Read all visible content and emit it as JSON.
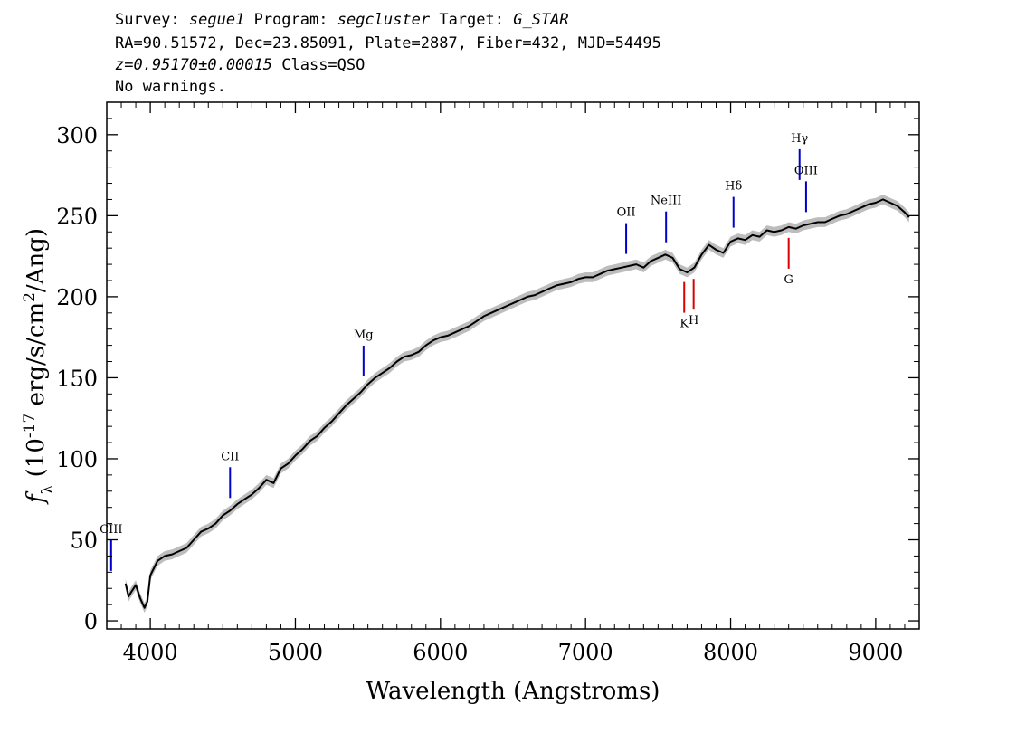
{
  "header": {
    "survey_label": "Survey:",
    "survey_value": "segue1",
    "program_label": "Program:",
    "program_value": "segcluster",
    "target_label": "Target:",
    "target_value": "G_STAR",
    "line2": "RA=90.51572, Dec=23.85091, Plate=2887, Fiber=432, MJD=54495",
    "redshift": "z=0.95170±0.00015",
    "class_text": "Class=QSO",
    "line4": "No warnings."
  },
  "chart_data": {
    "type": "line",
    "xlabel": "Wavelength (Angstroms)",
    "ylabel": "f_λ (10^-17 erg/s/cm^2/Ang)",
    "xlim": [
      3700,
      9300
    ],
    "ylim": [
      -5,
      320
    ],
    "xticks": [
      "4000",
      "5000",
      "6000",
      "7000",
      "8000",
      "9000"
    ],
    "yticks": [
      "0",
      "50",
      "100",
      "150",
      "200",
      "250",
      "300"
    ],
    "colors": {
      "spectrum": "#000000",
      "error_band": "#bdbdbd",
      "emission_lines": "#0000cc",
      "absorption_lines": "#dd0000"
    },
    "series": [
      {
        "x": [
          3830,
          3850,
          3870,
          3900,
          3930,
          3960,
          3980,
          4000,
          4050,
          4100,
          4150,
          4200,
          4250,
          4300,
          4350,
          4400,
          4450,
          4500,
          4550,
          4600,
          4650,
          4700,
          4750,
          4800,
          4850,
          4900,
          4950,
          5000,
          5050,
          5100,
          5150,
          5200,
          5250,
          5300,
          5350,
          5400,
          5450,
          5500,
          5550,
          5600,
          5650,
          5700,
          5750,
          5800,
          5850,
          5900,
          5950,
          6000,
          6050,
          6100,
          6150,
          6200,
          6250,
          6300,
          6350,
          6400,
          6450,
          6500,
          6550,
          6600,
          6650,
          6700,
          6750,
          6800,
          6850,
          6900,
          6950,
          7000,
          7050,
          7100,
          7150,
          7200,
          7250,
          7300,
          7350,
          7400,
          7450,
          7500,
          7550,
          7600,
          7650,
          7700,
          7750,
          7800,
          7850,
          7900,
          7950,
          8000,
          8050,
          8100,
          8150,
          8200,
          8250,
          8300,
          8350,
          8400,
          8450,
          8500,
          8550,
          8600,
          8650,
          8700,
          8750,
          8800,
          8850,
          8900,
          8950,
          9000,
          9050,
          9100,
          9150,
          9200,
          9230
        ],
        "y": [
          23,
          15,
          18,
          22,
          14,
          8,
          12,
          28,
          37,
          40,
          41,
          43,
          45,
          50,
          55,
          57,
          60,
          65,
          68,
          72,
          75,
          78,
          82,
          87,
          85,
          94,
          97,
          102,
          106,
          111,
          114,
          119,
          123,
          128,
          133,
          137,
          141,
          146,
          150,
          153,
          156,
          160,
          163,
          164,
          166,
          170,
          173,
          175,
          176,
          178,
          180,
          182,
          185,
          188,
          190,
          192,
          194,
          196,
          198,
          200,
          201,
          203,
          205,
          207,
          208,
          209,
          211,
          212,
          212,
          214,
          216,
          217,
          218,
          219,
          220,
          218,
          222,
          224,
          226,
          224,
          217,
          215,
          218,
          226,
          232,
          229,
          227,
          234,
          236,
          235,
          238,
          237,
          241,
          240,
          241,
          243,
          242,
          244,
          245,
          246,
          246,
          248,
          250,
          251,
          253,
          255,
          257,
          258,
          260,
          258,
          256,
          252,
          249
        ]
      }
    ],
    "line_markers": [
      {
        "label": "CIII",
        "x": 3730,
        "color": "blue"
      },
      {
        "label": "CII",
        "x": 4550,
        "color": "blue"
      },
      {
        "label": "Mg",
        "x": 5470,
        "color": "blue"
      },
      {
        "label": "OII",
        "x": 7280,
        "color": "blue"
      },
      {
        "label": "NeIII",
        "x": 7555,
        "color": "blue"
      },
      {
        "label": "Hδ",
        "x": 8020,
        "color": "blue"
      },
      {
        "label": "Hγ",
        "x": 8475,
        "color": "blue"
      },
      {
        "label": "OIII",
        "x": 8520,
        "color": "blue"
      },
      {
        "label": "K",
        "x": 7680,
        "color": "red"
      },
      {
        "label": "H",
        "x": 7745,
        "color": "red"
      },
      {
        "label": "G",
        "x": 8400,
        "color": "red"
      }
    ]
  }
}
